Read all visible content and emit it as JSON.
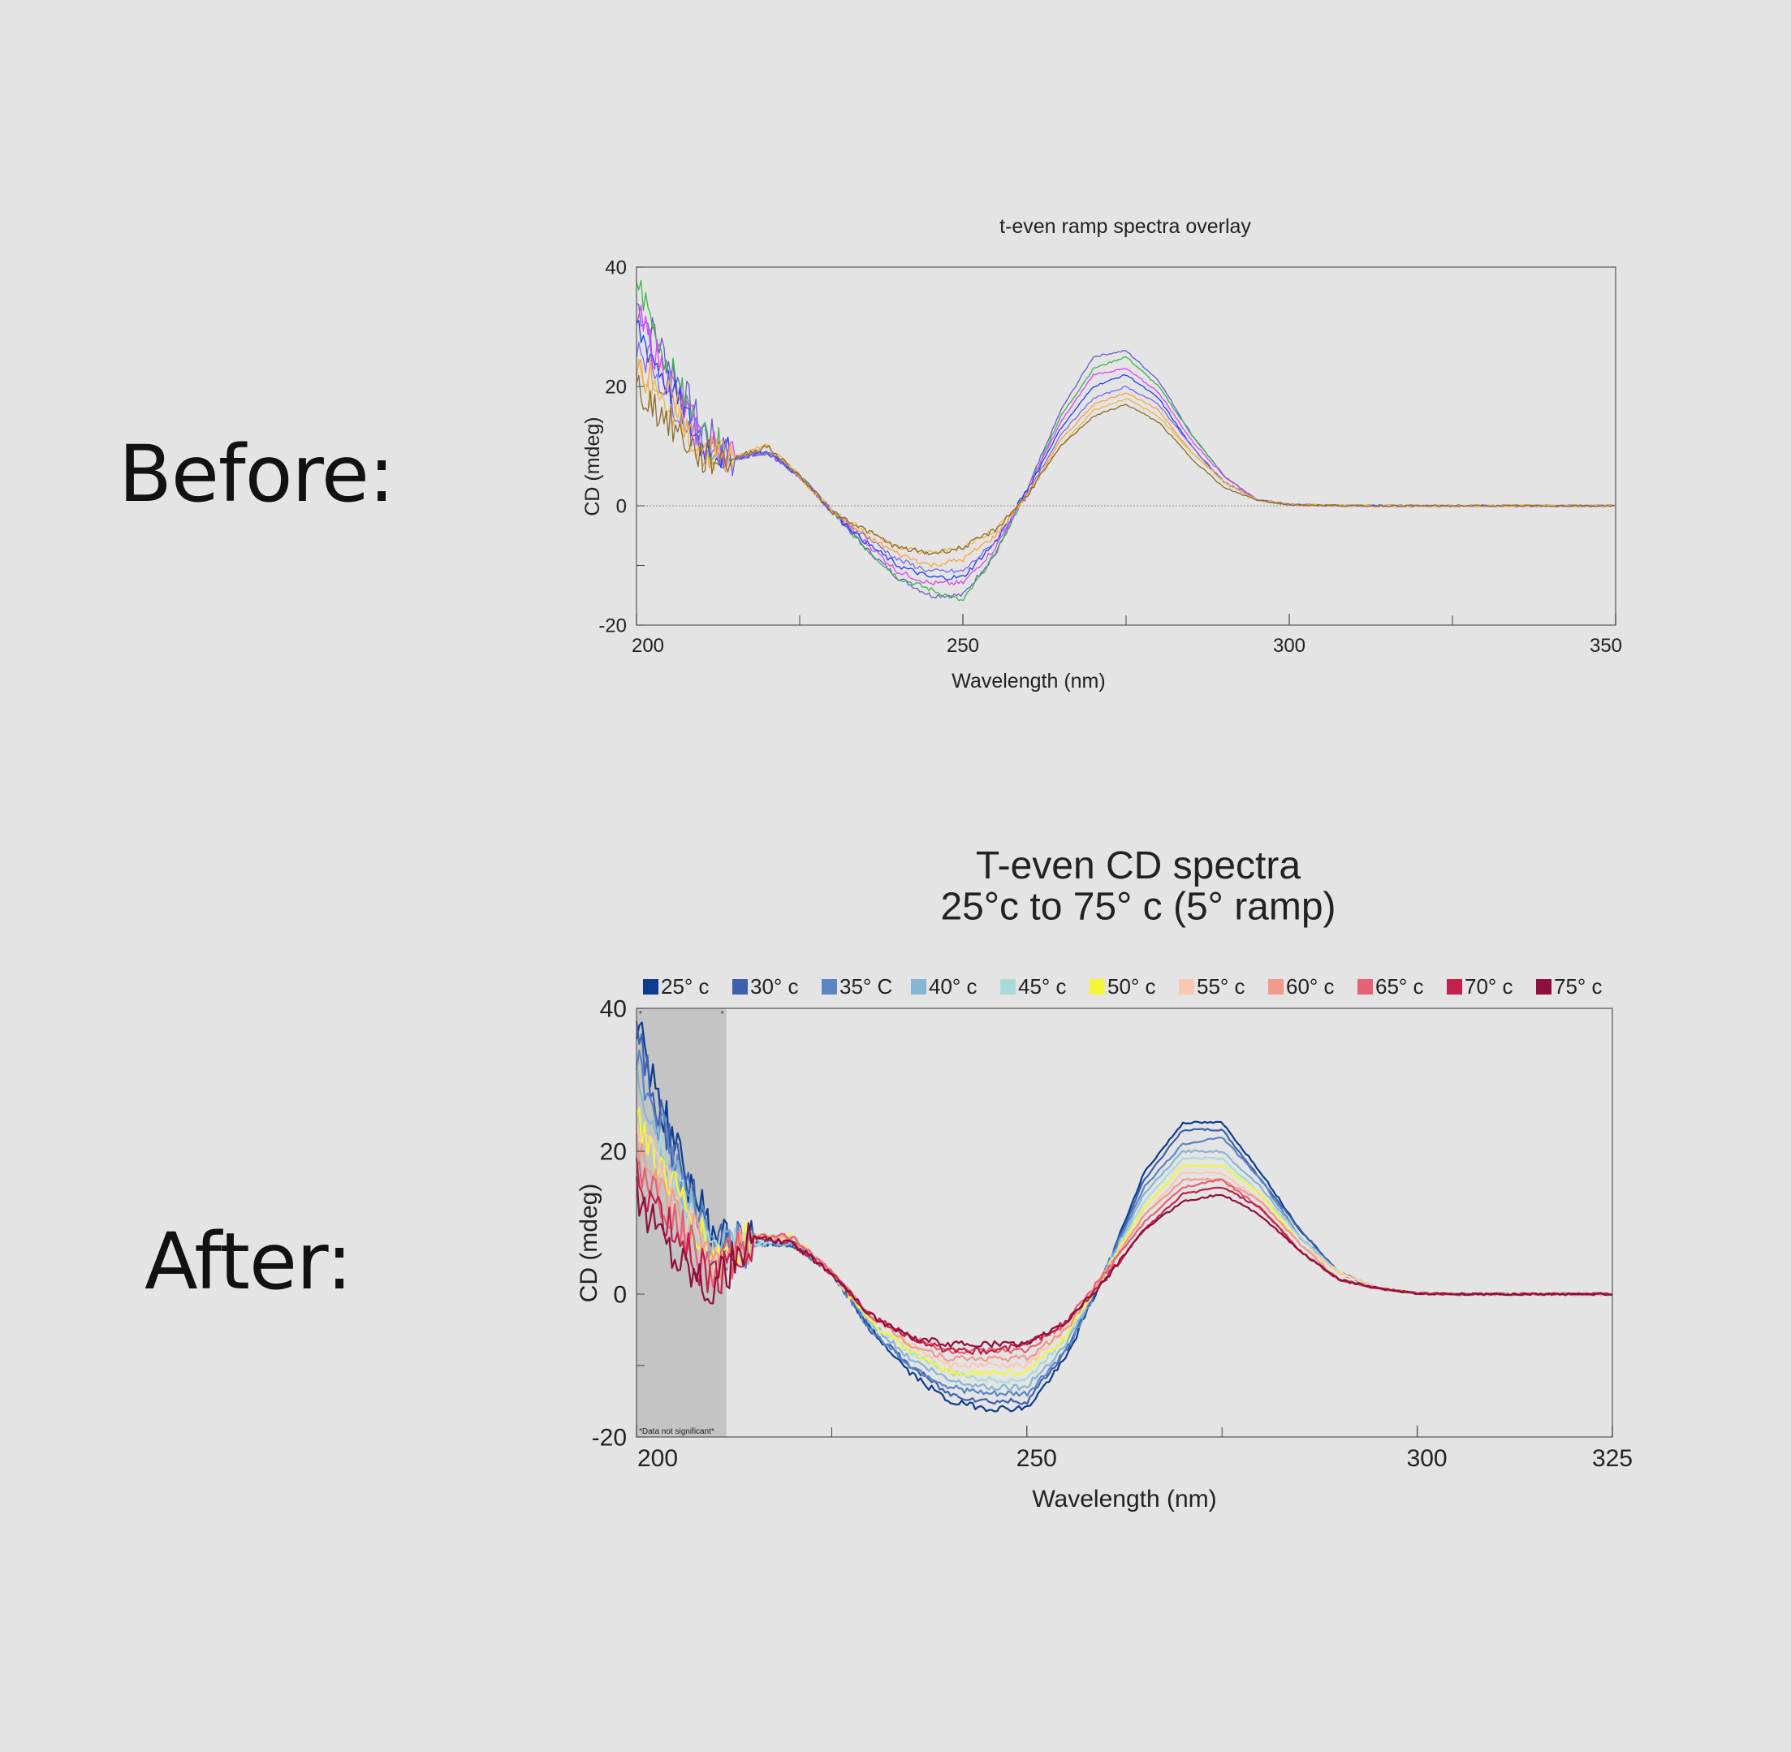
{
  "labels": {
    "before": "Before:",
    "after": "After:"
  },
  "chart_data": [
    {
      "type": "line",
      "title": "t-even ramp spectra overlay",
      "xlabel": "Wavelength (nm)",
      "ylabel": "CD (mdeg)",
      "xlim": [
        200,
        350
      ],
      "ylim": [
        -20,
        40
      ],
      "x_ticks": [
        200,
        250,
        300,
        350
      ],
      "y_ticks": [
        -20,
        0,
        20,
        40
      ],
      "grid": false,
      "legend": "none",
      "zero_line": true,
      "x": [
        200,
        205,
        210,
        215,
        220,
        225,
        230,
        235,
        240,
        245,
        250,
        255,
        260,
        265,
        270,
        275,
        280,
        285,
        290,
        295,
        300,
        310,
        320,
        330,
        340,
        350
      ],
      "series": [
        {
          "color": "#6a5acd",
          "values": [
            34,
            24,
            13,
            8,
            9,
            5,
            -1,
            -7,
            -12,
            -15,
            -15,
            -8,
            3,
            16,
            25,
            26,
            21,
            12,
            5,
            1,
            0.2,
            0,
            0,
            0,
            0,
            0
          ]
        },
        {
          "color": "#3cb44b",
          "values": [
            38,
            23,
            12,
            8,
            9,
            5,
            -1,
            -7,
            -12,
            -14,
            -16,
            -8,
            3,
            15,
            23,
            25,
            20,
            12,
            5,
            1,
            0.2,
            0,
            0,
            0,
            0,
            0
          ]
        },
        {
          "color": "#e040fb",
          "values": [
            32,
            21,
            11,
            8,
            9,
            5,
            -1,
            -6,
            -11,
            -13,
            -13,
            -7,
            3,
            14,
            22,
            23,
            19,
            11,
            5,
            1,
            0.2,
            0,
            0,
            0,
            0,
            0
          ]
        },
        {
          "color": "#1e3cff",
          "values": [
            30,
            20,
            10,
            8,
            9,
            5,
            -1,
            -6,
            -10,
            -12,
            -12,
            -6,
            3,
            13,
            20,
            22,
            18,
            10,
            4,
            1,
            0.2,
            0,
            0,
            0,
            0,
            0
          ]
        },
        {
          "color": "#7b68ee",
          "values": [
            28,
            19,
            10,
            8,
            9,
            5,
            -1,
            -5,
            -9,
            -11,
            -11,
            -6,
            2,
            12,
            18,
            20,
            17,
            10,
            4,
            1,
            0.2,
            0,
            0,
            0,
            0,
            0
          ]
        },
        {
          "color": "#ff9f40",
          "values": [
            25,
            18,
            9,
            8,
            10,
            5,
            -1,
            -5,
            -8,
            -10,
            -9,
            -5,
            2,
            11,
            17,
            19,
            16,
            9,
            4,
            1,
            0.2,
            0,
            0,
            0,
            0,
            0
          ]
        },
        {
          "color": "#e8b84a",
          "values": [
            22,
            16,
            9,
            8,
            10,
            5,
            -1,
            -4,
            -7,
            -8,
            -7,
            -4,
            2,
            10,
            16,
            18,
            15,
            9,
            4,
            1,
            0.2,
            0,
            0,
            0,
            0,
            0
          ]
        },
        {
          "color": "#8b6b2e",
          "values": [
            20,
            14,
            8,
            8,
            10,
            5,
            -1,
            -4,
            -7,
            -8,
            -7,
            -4,
            2,
            10,
            15,
            17,
            14,
            8,
            3,
            1,
            0.2,
            0,
            0,
            0,
            0,
            0
          ]
        }
      ]
    },
    {
      "type": "line",
      "title": "T-even CD spectra",
      "subtitle": "25°c to 75° c (5° ramp)",
      "xlabel": "Wavelength (nm)",
      "ylabel": "CD (mdeg)",
      "xlim": [
        200,
        325
      ],
      "ylim": [
        -20,
        40
      ],
      "x_ticks": [
        200,
        250,
        300,
        325
      ],
      "y_ticks": [
        -20,
        0,
        20,
        40
      ],
      "grid": false,
      "legend": "top",
      "shaded_region": {
        "x_range": [
          200,
          211.5
        ],
        "note": "*Data not significant*",
        "color": "#c4c4c4"
      },
      "x": [
        200,
        205,
        210,
        215,
        220,
        225,
        230,
        235,
        240,
        245,
        250,
        255,
        260,
        265,
        270,
        275,
        280,
        285,
        290,
        295,
        300,
        305,
        310,
        315,
        320,
        325
      ],
      "series": [
        {
          "name": "25° c",
          "color": "#0a3d91",
          "values": [
            38,
            20,
            8,
            7,
            7,
            3,
            -5,
            -11,
            -15,
            -16,
            -16,
            -9,
            3,
            17,
            24,
            24,
            17,
            9,
            3,
            0.8,
            0.1,
            0,
            0,
            0,
            0,
            0
          ]
        },
        {
          "name": "30° c",
          "color": "#3d5fae",
          "values": [
            36,
            19,
            7,
            7,
            7,
            3,
            -5,
            -10,
            -14,
            -15,
            -15,
            -8,
            3,
            16,
            23,
            23,
            16,
            9,
            3,
            0.8,
            0.1,
            0,
            0,
            0,
            0,
            0
          ]
        },
        {
          "name": "35° C",
          "color": "#5b86c4",
          "values": [
            33,
            18,
            6,
            7,
            7,
            3,
            -5,
            -10,
            -13,
            -14,
            -14,
            -8,
            3,
            15,
            21,
            22,
            16,
            8,
            3,
            0.8,
            0.1,
            0,
            0,
            0,
            0,
            0
          ]
        },
        {
          "name": "40° c",
          "color": "#86b6d4",
          "values": [
            30,
            16,
            6,
            7,
            7,
            3,
            -4,
            -9,
            -12,
            -13,
            -13,
            -7,
            3,
            14,
            20,
            20,
            15,
            8,
            3,
            0.8,
            0.1,
            0,
            0,
            0,
            0,
            0
          ]
        },
        {
          "name": "45° c",
          "color": "#a9dad9",
          "values": [
            27,
            15,
            5,
            7,
            8,
            3,
            -4,
            -8,
            -11,
            -12,
            -12,
            -6,
            3,
            13,
            19,
            19,
            14,
            8,
            3,
            0.8,
            0.1,
            0,
            0,
            0,
            0,
            0
          ]
        },
        {
          "name": "50° c",
          "color": "#f5f53a",
          "values": [
            24,
            14,
            5,
            8,
            8,
            3,
            -4,
            -8,
            -11,
            -11,
            -11,
            -6,
            3,
            12,
            18,
            18,
            14,
            7,
            3,
            0.8,
            0.1,
            0,
            0,
            0,
            0,
            0
          ]
        },
        {
          "name": "55° c",
          "color": "#f9c8b4",
          "values": [
            22,
            13,
            4,
            8,
            8,
            3,
            -3,
            -7,
            -10,
            -10,
            -10,
            -5,
            3,
            11,
            17,
            17,
            13,
            7,
            3,
            0.8,
            0.1,
            0,
            0,
            0,
            0,
            0
          ]
        },
        {
          "name": "60° c",
          "color": "#f29a8c",
          "values": [
            20,
            12,
            4,
            8,
            8,
            3,
            -3,
            -7,
            -9,
            -9,
            -9,
            -5,
            3,
            11,
            16,
            16,
            13,
            7,
            2,
            0.8,
            0.1,
            0,
            0,
            0,
            0,
            0
          ]
        },
        {
          "name": "65° c",
          "color": "#e46274",
          "values": [
            18,
            10,
            3,
            8,
            8,
            3,
            -3,
            -6,
            -8,
            -8,
            -8,
            -4,
            3,
            10,
            15,
            16,
            12,
            6,
            2,
            0.8,
            0.1,
            0,
            0,
            0,
            0,
            0
          ]
        },
        {
          "name": "70° c",
          "color": "#c3204a",
          "values": [
            16,
            8,
            2,
            8,
            7,
            3,
            -3,
            -6,
            -8,
            -8,
            -7,
            -4,
            2,
            9,
            14,
            15,
            12,
            6,
            2,
            0.8,
            0.1,
            0,
            0,
            0,
            0,
            0
          ]
        },
        {
          "name": "75° c",
          "color": "#8e0f3c",
          "values": [
            14,
            6,
            1,
            8,
            7,
            3,
            -3,
            -6,
            -7,
            -7,
            -7,
            -4,
            2,
            9,
            13,
            14,
            11,
            6,
            2,
            0.8,
            0.1,
            0,
            0,
            0,
            0,
            0
          ]
        }
      ]
    }
  ]
}
